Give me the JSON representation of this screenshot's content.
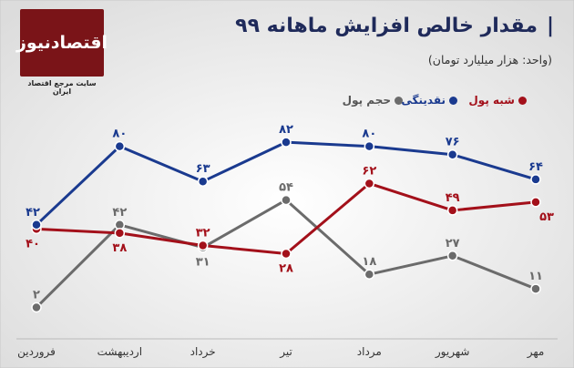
{
  "header": {
    "title": "مقدار خالص افزایش ماهانه ۹۹",
    "title_bar": "|",
    "subtitle": "(واحد: هزار میلیارد تومان)"
  },
  "logo": {
    "name": "اقتصادنیوز",
    "tagline": "سایت مرجع اقتصاد ایران"
  },
  "colors": {
    "navy": "#1a3a8f",
    "red": "#a3101a",
    "gray": "#6b6b6b",
    "logo": "#7a1418"
  },
  "chart_data": {
    "type": "line",
    "x_direction": "right-to-left",
    "categories": [
      "فروردین",
      "اردیبهشت",
      "خرداد",
      "تیر",
      "مرداد",
      "شهریور",
      "مهر"
    ],
    "ylim": [
      0,
      90
    ],
    "grid": false,
    "legend_position": "top",
    "series": [
      {
        "name": "نقدینگی",
        "color": "#1a3a8f",
        "values": [
          42,
          80,
          63,
          82,
          80,
          76,
          64
        ],
        "labels": [
          "۴۲",
          "۸۰",
          "۶۳",
          "۸۲",
          "۸۰",
          "۷۶",
          "۶۴"
        ]
      },
      {
        "name": "شبه پول",
        "color": "#a3101a",
        "values": [
          40,
          38,
          32,
          28,
          62,
          49,
          53
        ],
        "labels": [
          "۴۰",
          "۳۸",
          "۳۲",
          "۲۸",
          "۶۲",
          "۴۹",
          "۵۳"
        ]
      },
      {
        "name": "حجم پول",
        "color": "#6b6b6b",
        "values": [
          2,
          42,
          31,
          54,
          18,
          27,
          11
        ],
        "labels": [
          "۲",
          "۴۲",
          "۳۱",
          "۵۴",
          "۱۸",
          "۲۷",
          "۱۱"
        ]
      }
    ]
  }
}
